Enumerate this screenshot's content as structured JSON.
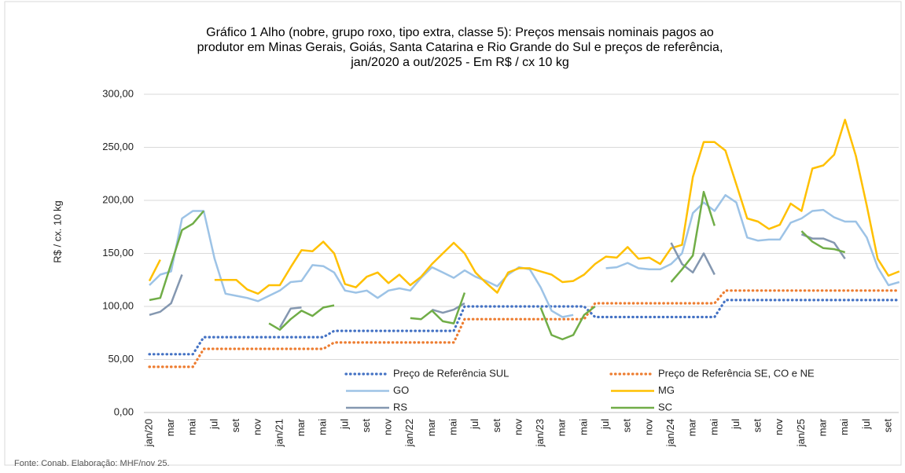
{
  "chart_data": {
    "type": "line",
    "title": [
      "Gráfico 1 Alho (nobre, grupo roxo, tipo extra, classe 5): Preços mensais nominais pagos ao",
      "produtor em Minas Gerais, Goiás, Santa Catarina e Rio Grande do Sul e preços de referência,",
      "jan/2020 a out/2025 - Em R$ / cx 10 kg"
    ],
    "y_label": "R$ / cx. 10 kg",
    "source": "Fonte: Conab. Elaboração: MHF/nov 25.",
    "categories": [
      "jan/20",
      null,
      "mar",
      null,
      "mai",
      null,
      "jul",
      null,
      "set",
      null,
      "nov",
      null,
      "jan/21",
      null,
      "mar",
      null,
      "mai",
      null,
      "jul",
      null,
      "set",
      null,
      "nov",
      null,
      "jan/22",
      null,
      "mar",
      null,
      "mai",
      null,
      "jul",
      null,
      "set",
      null,
      "nov",
      null,
      "jan/23",
      null,
      "mar",
      null,
      "mai",
      null,
      "jul",
      null,
      "set",
      null,
      "nov",
      null,
      "jan/24",
      null,
      "mar",
      null,
      "mai",
      null,
      "jul",
      null,
      "set",
      null,
      "nov",
      null,
      "jan/25",
      null,
      "mar",
      null,
      "mai",
      null,
      "jul",
      null,
      "set",
      null
    ],
    "ylim": [
      0,
      300
    ],
    "yticks": [
      {
        "value": 0,
        "label": "0,00"
      },
      {
        "value": 50,
        "label": "50,00"
      },
      {
        "value": 100,
        "label": "100,00"
      },
      {
        "value": 150,
        "label": "150,00"
      },
      {
        "value": 200,
        "label": "200,00"
      },
      {
        "value": 250,
        "label": "250,00"
      },
      {
        "value": 300,
        "label": "300,00"
      }
    ],
    "grid": true,
    "legend": "bottom",
    "series": [
      {
        "name": "Preço de Referência SUL",
        "color": "#4472c4",
        "style": "dotted",
        "values": [
          55,
          55,
          55,
          55,
          55,
          71,
          71,
          71,
          71,
          71,
          71,
          71,
          71,
          71,
          71,
          71,
          71,
          77,
          77,
          77,
          77,
          77,
          77,
          77,
          77,
          77,
          77,
          77,
          77,
          100,
          100,
          100,
          100,
          100,
          100,
          100,
          100,
          100,
          100,
          100,
          100,
          90,
          90,
          90,
          90,
          90,
          90,
          90,
          90,
          90,
          90,
          90,
          90,
          106,
          106,
          106,
          106,
          106,
          106,
          106,
          106,
          106,
          106,
          106,
          106,
          106,
          106,
          106,
          106,
          106
        ]
      },
      {
        "name": "Preço de Referência SE, CO e NE",
        "color": "#ed7d31",
        "style": "dotted",
        "values": [
          43,
          43,
          43,
          43,
          43,
          60,
          60,
          60,
          60,
          60,
          60,
          60,
          60,
          60,
          60,
          60,
          60,
          66,
          66,
          66,
          66,
          66,
          66,
          66,
          66,
          66,
          66,
          66,
          66,
          88,
          88,
          88,
          88,
          88,
          88,
          88,
          88,
          88,
          88,
          88,
          88,
          103,
          103,
          103,
          103,
          103,
          103,
          103,
          103,
          103,
          103,
          103,
          103,
          115,
          115,
          115,
          115,
          115,
          115,
          115,
          115,
          115,
          115,
          115,
          115,
          115,
          115,
          115,
          115,
          115
        ]
      },
      {
        "name": "GO",
        "color": "#9dc3e6",
        "style": "solid",
        "values": [
          120,
          130,
          133,
          183,
          190,
          190,
          145,
          112,
          110,
          108,
          105,
          110,
          115,
          123,
          124,
          139,
          138,
          132,
          115,
          113,
          115,
          108,
          115,
          117,
          115,
          127,
          137,
          132,
          127,
          134,
          128,
          124,
          119,
          130,
          137,
          135,
          118,
          96,
          90,
          92,
          null,
          null,
          136,
          137,
          141,
          136,
          135,
          135,
          140,
          150,
          188,
          198,
          190,
          205,
          198,
          165,
          162,
          163,
          163,
          179,
          183,
          190,
          191,
          184,
          180,
          180,
          165,
          137,
          120,
          123
        ]
      },
      {
        "name": "MG",
        "color": "#ffc000",
        "style": "solid",
        "values": [
          124,
          144,
          null,
          null,
          null,
          null,
          125,
          125,
          125,
          116,
          112,
          120,
          120,
          137,
          153,
          152,
          161,
          150,
          121,
          118,
          128,
          132,
          122,
          130,
          120,
          128,
          140,
          150,
          160,
          150,
          132,
          122,
          113,
          132,
          136,
          136,
          133,
          130,
          123,
          124,
          130,
          140,
          147,
          146,
          156,
          145,
          146,
          140,
          155,
          158,
          222,
          255,
          255,
          247,
          215,
          183,
          180,
          173,
          177,
          197,
          190,
          230,
          233,
          243,
          276,
          242,
          195,
          145,
          129,
          133
        ]
      },
      {
        "name": "RS",
        "color": "#8497b0",
        "style": "solid",
        "values": [
          92,
          95,
          103,
          130,
          null,
          null,
          null,
          null,
          null,
          null,
          null,
          null,
          80,
          98,
          99,
          null,
          null,
          null,
          null,
          null,
          null,
          null,
          null,
          null,
          null,
          null,
          97,
          94,
          97,
          103,
          null,
          null,
          null,
          null,
          null,
          null,
          null,
          null,
          null,
          null,
          null,
          null,
          null,
          null,
          null,
          null,
          null,
          null,
          160,
          140,
          132,
          150,
          130,
          null,
          null,
          null,
          null,
          null,
          null,
          null,
          168,
          164,
          164,
          160,
          145,
          null,
          null,
          null,
          null,
          null
        ]
      },
      {
        "name": "SC",
        "color": "#70ad47",
        "style": "solid",
        "values": [
          106,
          108,
          140,
          172,
          178,
          190,
          null,
          null,
          null,
          null,
          null,
          84,
          78,
          88,
          96,
          91,
          99,
          101,
          null,
          null,
          null,
          null,
          null,
          null,
          89,
          88,
          96,
          86,
          84,
          113,
          null,
          null,
          null,
          null,
          null,
          null,
          99,
          73,
          69,
          73,
          92,
          100,
          null,
          null,
          null,
          null,
          null,
          null,
          123,
          135,
          148,
          208,
          176,
          null,
          null,
          null,
          null,
          null,
          null,
          null,
          171,
          161,
          155,
          154,
          151,
          null,
          null,
          null,
          null,
          null
        ]
      }
    ]
  }
}
